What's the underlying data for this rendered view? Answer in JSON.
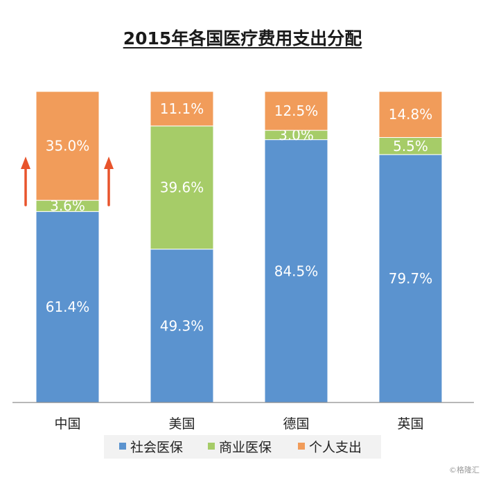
{
  "chart_data": {
    "type": "bar",
    "stacked": true,
    "title": "2015年各国医疗费用支出分配",
    "categories": [
      "中国",
      "美国",
      "德国",
      "英国"
    ],
    "series": [
      {
        "name": "社会医保",
        "values": [
          61.4,
          49.3,
          84.5,
          79.7
        ],
        "labels": [
          "61.4%",
          "49.3%",
          "84.5%",
          "79.7%"
        ],
        "color": "#5b93cf"
      },
      {
        "name": "商业医保",
        "values": [
          3.6,
          39.6,
          3.0,
          5.5
        ],
        "labels": [
          "3.6%",
          "39.6%",
          "3.0%",
          "5.5%"
        ],
        "color": "#a6cc68"
      },
      {
        "name": "个人支出",
        "values": [
          35.0,
          11.1,
          12.5,
          14.8
        ],
        "labels": [
          "35.0%",
          "11.1%",
          "12.5%",
          "14.8%"
        ],
        "color": "#f19c5a"
      }
    ],
    "ylim": [
      0,
      100
    ],
    "grid": false,
    "legend": "bottom",
    "annotations": [
      {
        "type": "up-arrows",
        "category": "中国",
        "color": "#e8542c"
      }
    ]
  },
  "watermark": "©格隆汇"
}
